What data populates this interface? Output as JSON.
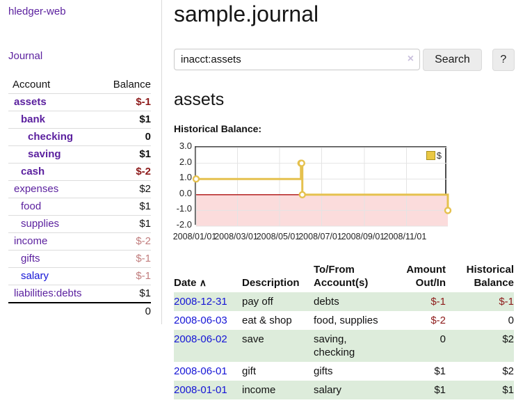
{
  "app": {
    "brand": "hledger-web"
  },
  "nav": {
    "journal": "Journal"
  },
  "sidebar": {
    "header": {
      "account": "Account",
      "balance": "Balance"
    },
    "accounts": [
      {
        "name": "assets",
        "balance": "$-1"
      },
      {
        "name": "bank",
        "balance": "$1"
      },
      {
        "name": "checking",
        "balance": "0"
      },
      {
        "name": "saving",
        "balance": "$1"
      },
      {
        "name": "cash",
        "balance": "$-2"
      },
      {
        "name": "expenses",
        "balance": "$2"
      },
      {
        "name": "food",
        "balance": "$1"
      },
      {
        "name": "supplies",
        "balance": "$1"
      },
      {
        "name": "income",
        "balance": "$-2"
      },
      {
        "name": "gifts",
        "balance": "$-1"
      },
      {
        "name": "salary",
        "balance": "$-1"
      },
      {
        "name": "liabilities:debts",
        "balance": "$1"
      }
    ],
    "total": "0"
  },
  "header": {
    "title": "sample.journal"
  },
  "search": {
    "value": "inacct:assets",
    "clear_icon": "×",
    "button": "Search",
    "help_button": "?"
  },
  "account_page": {
    "heading": "assets",
    "chart_label": "Historical Balance:"
  },
  "chart_data": {
    "type": "line",
    "step": true,
    "title": "Historical Balance",
    "series": [
      {
        "name": "$",
        "color": "#e5c14e",
        "points": [
          [
            "2008-01-01",
            1
          ],
          [
            "2008-06-01",
            2
          ],
          [
            "2008-06-02",
            2
          ],
          [
            "2008-06-03",
            0
          ],
          [
            "2008-12-31",
            -1
          ]
        ]
      }
    ],
    "x_range": [
      "2008-01-01",
      "2008-12-31"
    ],
    "ylim": [
      -2,
      3
    ],
    "y_ticks": [
      3,
      2,
      1,
      0,
      -1,
      -2
    ],
    "x_ticks": [
      {
        "date": "2008-01-01",
        "label": "2008/01/01"
      },
      {
        "date": "2008-03-01",
        "label": "2008/03/01"
      },
      {
        "date": "2008-05-01",
        "label": "2008/05/01"
      },
      {
        "date": "2008-07-01",
        "label": "2008/07/01"
      },
      {
        "date": "2008-09-01",
        "label": "2008/09/01"
      },
      {
        "date": "2008-11-01",
        "label": "2008/11/01"
      }
    ],
    "legend": {
      "label": "$",
      "swatch_color": "#eac844"
    },
    "negative_region_color": "#fbdcdc",
    "zero_line_color": "#ae0d0d",
    "grid": true,
    "legend_position": "top-right"
  },
  "journal": {
    "sort_icon": "∧",
    "columns": {
      "date": "Date",
      "description": "Description",
      "accounts": "To/From\nAccount(s)",
      "amount": "Amount\nOut/In",
      "balance": "Historical\nBalance"
    },
    "rows": [
      {
        "date": "2008-12-31",
        "description": "pay off",
        "accounts": "debts",
        "amount": "$-1",
        "balance": "$-1"
      },
      {
        "date": "2008-06-03",
        "description": "eat & shop",
        "accounts": "food, supplies",
        "amount": "$-2",
        "balance": "0"
      },
      {
        "date": "2008-06-02",
        "description": "save",
        "accounts": "saving,\nchecking",
        "amount": "0",
        "balance": "$2"
      },
      {
        "date": "2008-06-01",
        "description": "gift",
        "accounts": "gifts",
        "amount": "$1",
        "balance": "$2"
      },
      {
        "date": "2008-01-01",
        "description": "income",
        "accounts": "salary",
        "amount": "$1",
        "balance": "$1"
      }
    ]
  },
  "colors": {
    "link_purple": "#5a1f9e",
    "link_blue": "#1414d6",
    "negative_strong": "#8d1a1a",
    "negative_soft": "#c17d7d",
    "row_stripe_green": "#ddecdb",
    "chart_line_gold": "#e5c14e",
    "chart_negative_pink": "#fbdcdc",
    "chart_zero_red": "#ae0d0d"
  }
}
